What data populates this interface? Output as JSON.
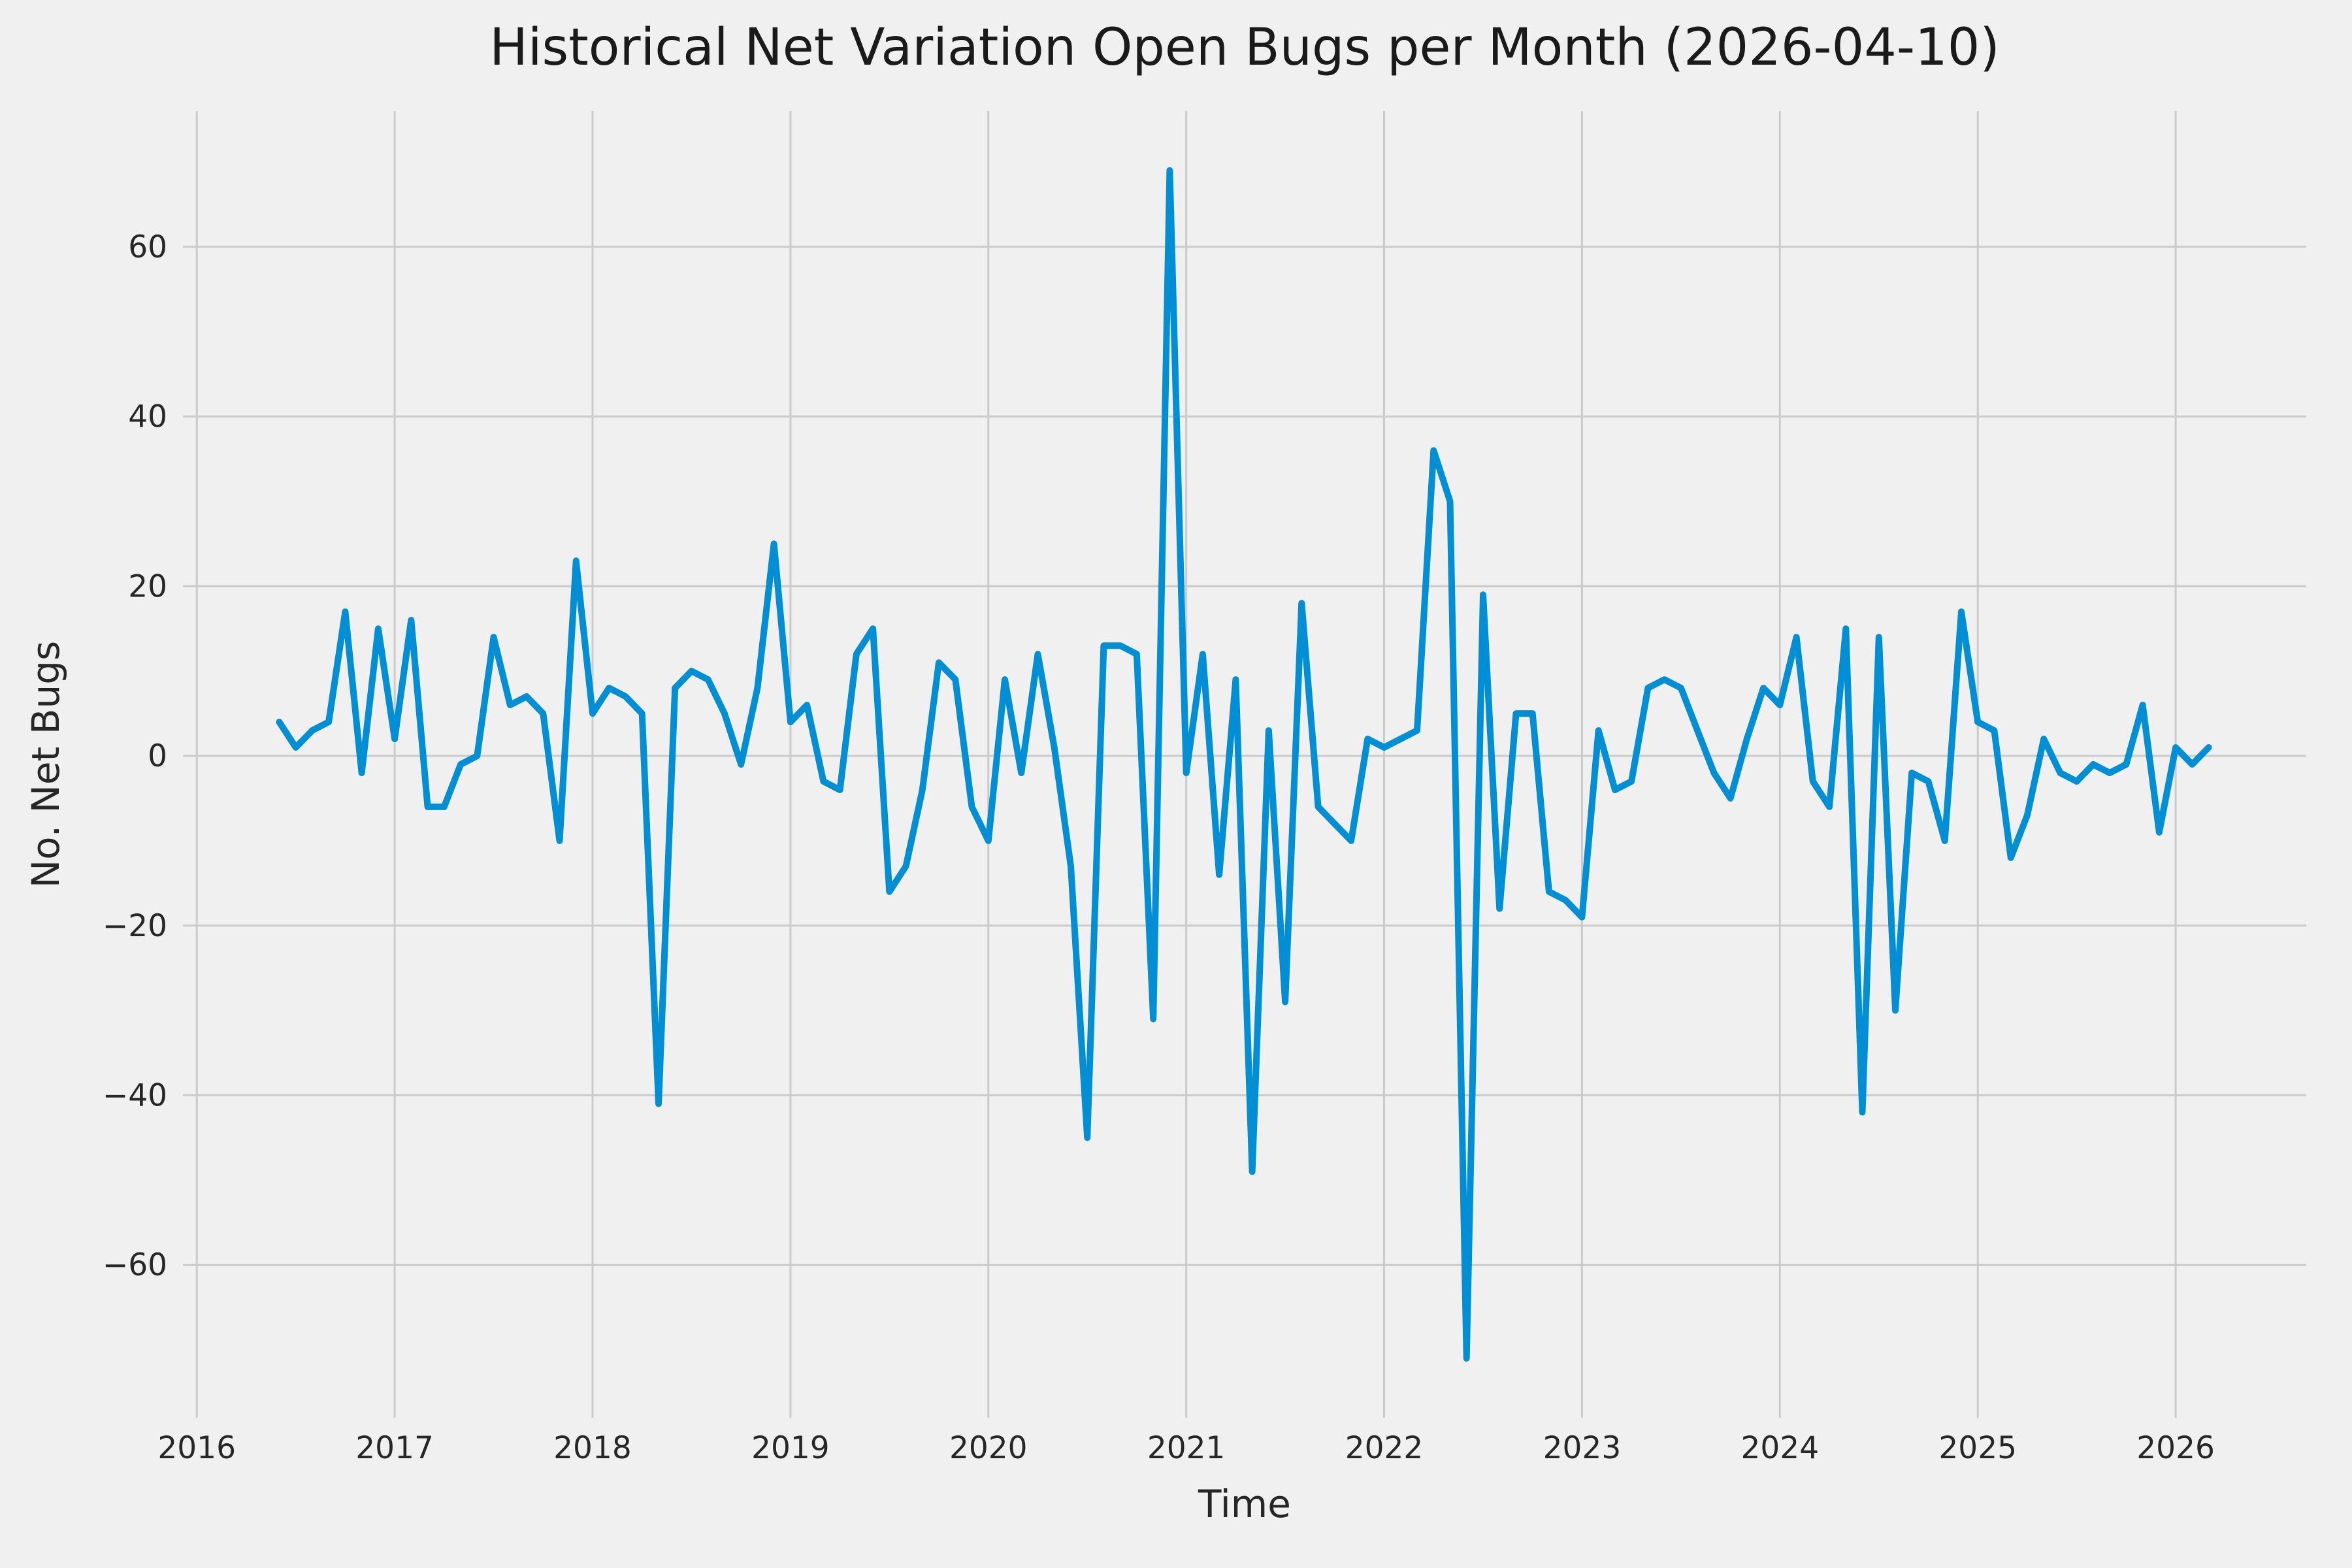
{
  "chart_data": {
    "type": "line",
    "title": "Historical Net Variation Open Bugs per Month (2026-04-10)",
    "xlabel": "Time",
    "ylabel": "No. Net Bugs",
    "x_start": 2016.4167,
    "x_step": 0.083333,
    "x_ticks": [
      2016,
      2017,
      2018,
      2019,
      2020,
      2021,
      2022,
      2023,
      2024,
      2025,
      2026
    ],
    "y_ticks": [
      -60,
      -40,
      -20,
      0,
      20,
      40,
      60
    ],
    "xlim": [
      2015.93,
      2026.66
    ],
    "ylim": [
      -78,
      76
    ],
    "grid": true,
    "legend": false,
    "line_color": "#008fd5",
    "grid_color": "#cbcbcb",
    "background_color": "#f0f0f0",
    "tick_color": "#262626",
    "values": [
      4,
      1,
      3,
      4,
      17,
      -2,
      15,
      2,
      16,
      -6,
      -6,
      -1,
      0,
      14,
      6,
      7,
      5,
      -10,
      23,
      5,
      8,
      7,
      5,
      -41,
      8,
      10,
      9,
      5,
      -1,
      8,
      25,
      4,
      6,
      -3,
      -4,
      12,
      15,
      -16,
      -13,
      -4,
      11,
      9,
      -6,
      -10,
      9,
      -2,
      12,
      1,
      -13,
      -45,
      13,
      13,
      12,
      -31,
      69,
      -2,
      12,
      -14,
      9,
      -49,
      3,
      -29,
      18,
      -6,
      -8,
      -10,
      2,
      1,
      2,
      3,
      36,
      30,
      -71,
      19,
      -18,
      5,
      5,
      -16,
      -17,
      -19,
      3,
      -4,
      -3,
      8,
      9,
      8,
      3,
      -2,
      -5,
      2,
      8,
      6,
      14,
      -3,
      -6,
      15,
      -42,
      14,
      -30,
      -2,
      -3,
      -10,
      17,
      4,
      3,
      -12,
      -7,
      2,
      -2,
      -3,
      -1,
      -2,
      -1,
      6,
      -9,
      1,
      -1,
      1
    ]
  }
}
